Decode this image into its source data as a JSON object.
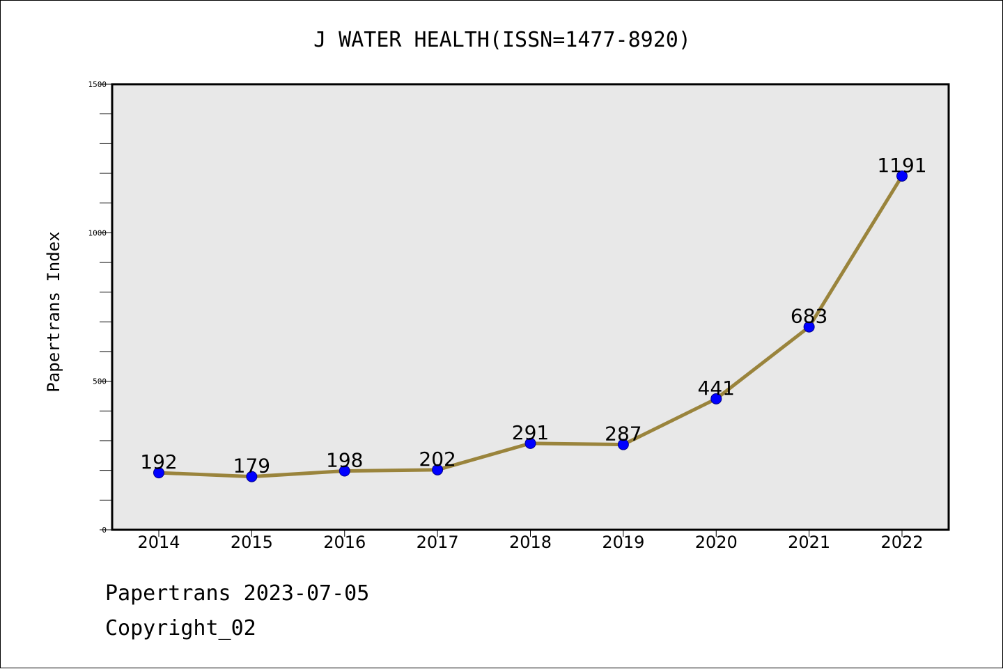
{
  "chart_data": {
    "type": "line",
    "title": "J WATER HEALTH(ISSN=1477-8920)",
    "xlabel": "",
    "ylabel": "Papertrans Index",
    "categories": [
      "2014",
      "2015",
      "2016",
      "2017",
      "2018",
      "2019",
      "2020",
      "2021",
      "2022"
    ],
    "series": [
      {
        "values": [
          192,
          179,
          198,
          202,
          291,
          287,
          441,
          683,
          1191
        ]
      }
    ],
    "ylim": [
      0,
      1500
    ],
    "yticks": [
      0,
      500,
      1000,
      1500
    ],
    "grid": false,
    "line_color": "#9a843c",
    "marker_color": "#0000ff",
    "plot_background": "#e8e8e8",
    "data_labels": true
  },
  "footer": {
    "line1": "Papertrans 2023-07-05",
    "line2": "Copyright_02"
  }
}
